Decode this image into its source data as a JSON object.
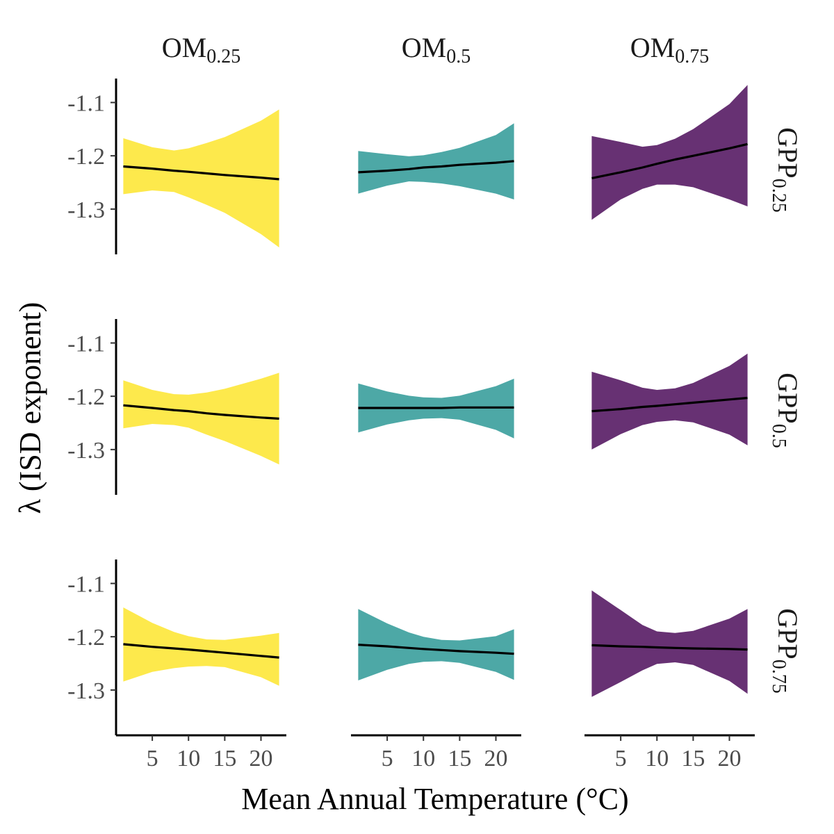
{
  "chart_data": {
    "type": "line",
    "xlabel": "Mean Annual Temperature (°C)",
    "ylabel": "λ (ISD exponent)",
    "x_ticks": [
      5,
      10,
      15,
      20
    ],
    "y_ticks": [
      -1.1,
      -1.2,
      -1.3
    ],
    "y_tick_labels": [
      "-1.1",
      "-1.2",
      "-1.3"
    ],
    "x_tick_labels": [
      "5",
      "10",
      "15",
      "20"
    ],
    "xlim": [
      0,
      23.5
    ],
    "ylim": [
      -1.385,
      -1.055
    ],
    "columns": [
      {
        "base": "OM",
        "sub": "0.25",
        "color": "#fde94c"
      },
      {
        "base": "OM",
        "sub": "0.5",
        "color": "#4da8a6"
      },
      {
        "base": "OM",
        "sub": "0.75",
        "color": "#673173"
      }
    ],
    "rows": [
      {
        "base": "GPP",
        "sub": "0.25"
      },
      {
        "base": "GPP",
        "sub": "0.5"
      },
      {
        "base": "GPP",
        "sub": "0.75"
      }
    ],
    "x": [
      1,
      5,
      8,
      10,
      12.5,
      15,
      20,
      22.5
    ],
    "panels": [
      [
        {
          "fit": [
            -1.22,
            -1.224,
            -1.228,
            -1.23,
            -1.233,
            -1.236,
            -1.241,
            -1.244
          ],
          "upper": [
            -1.167,
            -1.184,
            -1.19,
            -1.186,
            -1.176,
            -1.165,
            -1.134,
            -1.113
          ],
          "lower": [
            -1.272,
            -1.265,
            -1.268,
            -1.278,
            -1.292,
            -1.307,
            -1.347,
            -1.372
          ]
        },
        {
          "fit": [
            -1.231,
            -1.228,
            -1.225,
            -1.222,
            -1.22,
            -1.217,
            -1.213,
            -1.21
          ],
          "upper": [
            -1.191,
            -1.197,
            -1.201,
            -1.199,
            -1.193,
            -1.185,
            -1.161,
            -1.139
          ],
          "lower": [
            -1.271,
            -1.256,
            -1.248,
            -1.249,
            -1.252,
            -1.257,
            -1.271,
            -1.282
          ]
        },
        {
          "fit": [
            -1.242,
            -1.231,
            -1.222,
            -1.215,
            -1.207,
            -1.2,
            -1.186,
            -1.178
          ],
          "upper": [
            -1.163,
            -1.174,
            -1.183,
            -1.18,
            -1.168,
            -1.15,
            -1.103,
            -1.067
          ],
          "lower": [
            -1.32,
            -1.282,
            -1.262,
            -1.254,
            -1.254,
            -1.259,
            -1.282,
            -1.295
          ]
        }
      ],
      [
        {
          "fit": [
            -1.217,
            -1.222,
            -1.226,
            -1.228,
            -1.232,
            -1.235,
            -1.24,
            -1.242
          ],
          "upper": [
            -1.17,
            -1.188,
            -1.196,
            -1.197,
            -1.193,
            -1.186,
            -1.167,
            -1.156
          ],
          "lower": [
            -1.26,
            -1.252,
            -1.254,
            -1.259,
            -1.272,
            -1.284,
            -1.312,
            -1.328
          ]
        },
        {
          "fit": [
            -1.222,
            -1.222,
            -1.222,
            -1.222,
            -1.222,
            -1.221,
            -1.221,
            -1.221
          ],
          "upper": [
            -1.176,
            -1.191,
            -1.199,
            -1.202,
            -1.203,
            -1.199,
            -1.181,
            -1.167
          ],
          "lower": [
            -1.268,
            -1.253,
            -1.245,
            -1.242,
            -1.241,
            -1.244,
            -1.263,
            -1.279
          ]
        },
        {
          "fit": [
            -1.228,
            -1.224,
            -1.22,
            -1.218,
            -1.215,
            -1.212,
            -1.206,
            -1.203
          ],
          "upper": [
            -1.154,
            -1.17,
            -1.184,
            -1.188,
            -1.185,
            -1.175,
            -1.143,
            -1.12
          ],
          "lower": [
            -1.3,
            -1.271,
            -1.254,
            -1.248,
            -1.245,
            -1.249,
            -1.272,
            -1.292
          ]
        }
      ],
      [
        {
          "fit": [
            -1.214,
            -1.219,
            -1.222,
            -1.224,
            -1.227,
            -1.23,
            -1.236,
            -1.239
          ],
          "upper": [
            -1.145,
            -1.174,
            -1.191,
            -1.199,
            -1.205,
            -1.206,
            -1.198,
            -1.193
          ],
          "lower": [
            -1.284,
            -1.266,
            -1.259,
            -1.256,
            -1.255,
            -1.257,
            -1.276,
            -1.292
          ]
        },
        {
          "fit": [
            -1.215,
            -1.218,
            -1.221,
            -1.223,
            -1.225,
            -1.227,
            -1.23,
            -1.232
          ],
          "upper": [
            -1.148,
            -1.175,
            -1.192,
            -1.2,
            -1.206,
            -1.207,
            -1.199,
            -1.186
          ],
          "lower": [
            -1.282,
            -1.262,
            -1.251,
            -1.247,
            -1.246,
            -1.249,
            -1.266,
            -1.281
          ]
        },
        {
          "fit": [
            -1.216,
            -1.218,
            -1.219,
            -1.22,
            -1.221,
            -1.222,
            -1.223,
            -1.224
          ],
          "upper": [
            -1.113,
            -1.15,
            -1.178,
            -1.19,
            -1.193,
            -1.189,
            -1.166,
            -1.148
          ],
          "lower": [
            -1.313,
            -1.285,
            -1.263,
            -1.251,
            -1.248,
            -1.253,
            -1.283,
            -1.307
          ]
        }
      ]
    ]
  }
}
